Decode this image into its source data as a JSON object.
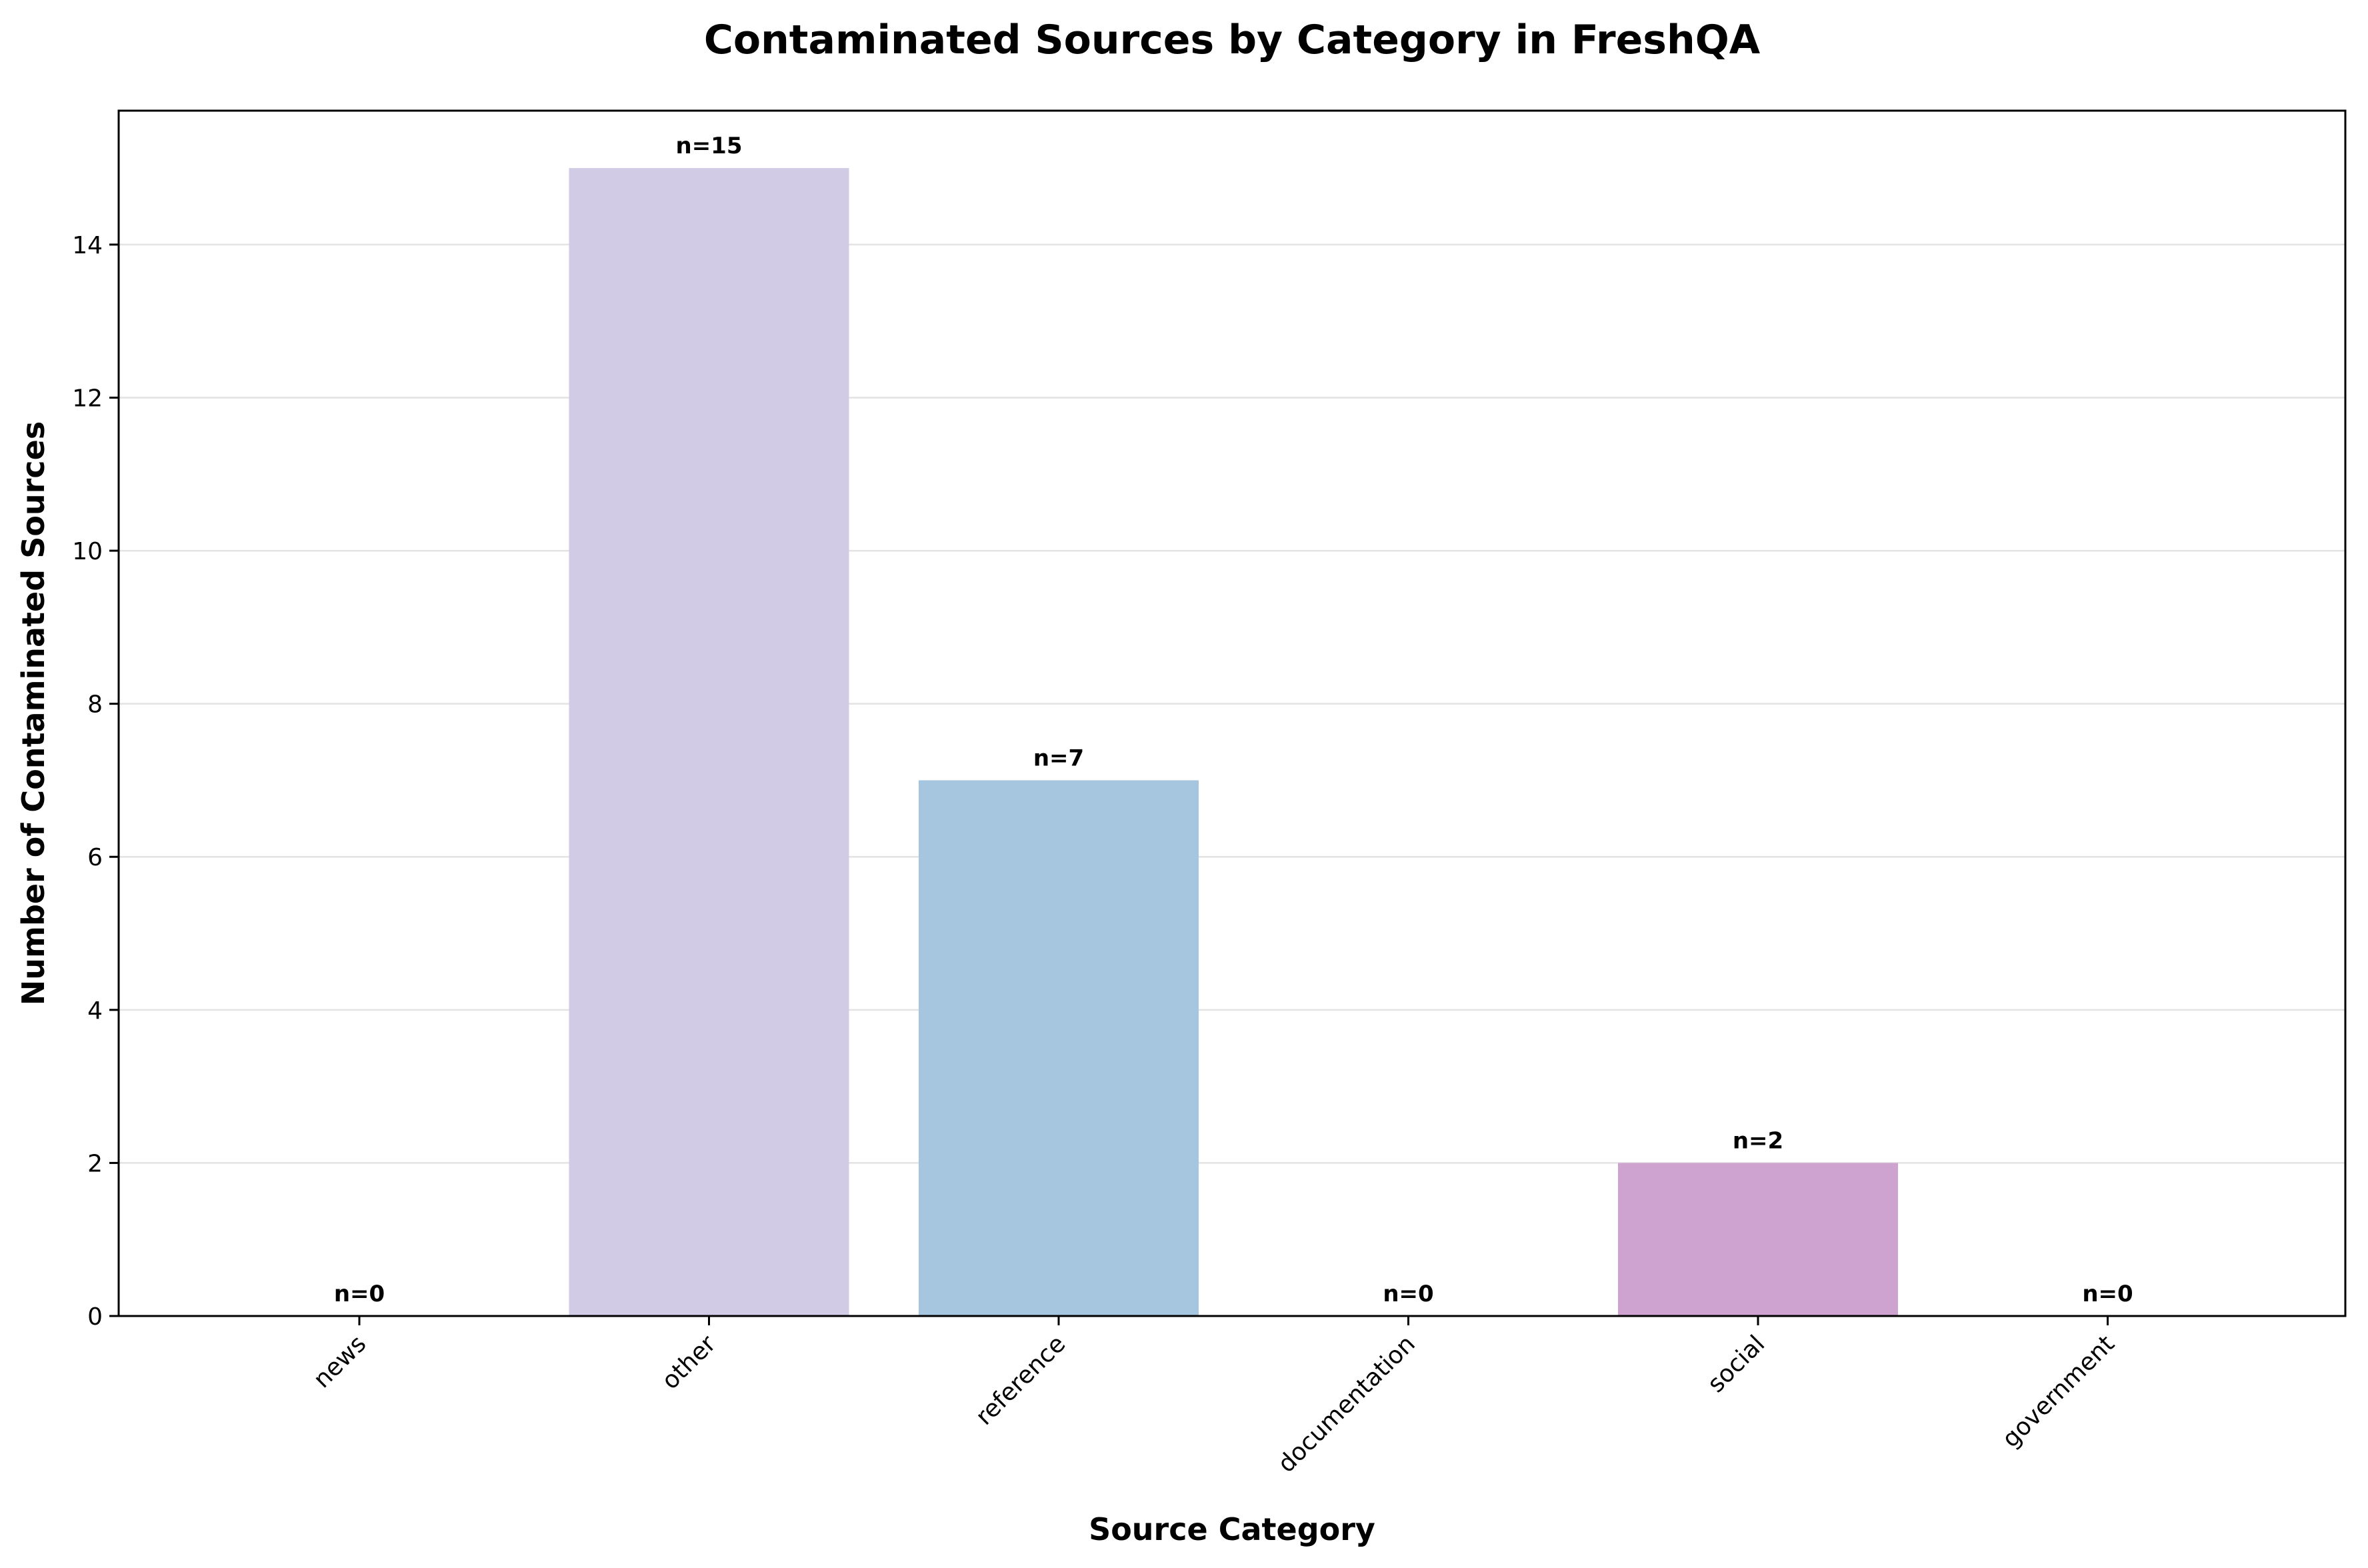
{
  "chart_data": {
    "type": "bar",
    "title": "Contaminated Sources by Category in FreshQA",
    "xlabel": "Source Category",
    "ylabel": "Number of Contaminated Sources",
    "categories": [
      "news",
      "other",
      "reference",
      "documentation",
      "social",
      "government"
    ],
    "values": [
      0,
      15,
      7,
      0,
      2,
      0
    ],
    "data_labels": [
      "n=0",
      "n=15",
      "n=7",
      "n=0",
      "n=2",
      "n=0"
    ],
    "colors": [
      "#fbb4ae",
      "#d1cbe5",
      "#a6c6e0",
      "#ccebc5",
      "#cfa3d0",
      "#fed9a6"
    ],
    "ylim": [
      0,
      15.75
    ],
    "yticks": [
      0,
      2,
      4,
      6,
      8,
      10,
      12,
      14
    ],
    "ytick_labels": [
      "0",
      "2",
      "4",
      "6",
      "8",
      "10",
      "12",
      "14"
    ],
    "grid": "horizontal",
    "legend": "none"
  }
}
